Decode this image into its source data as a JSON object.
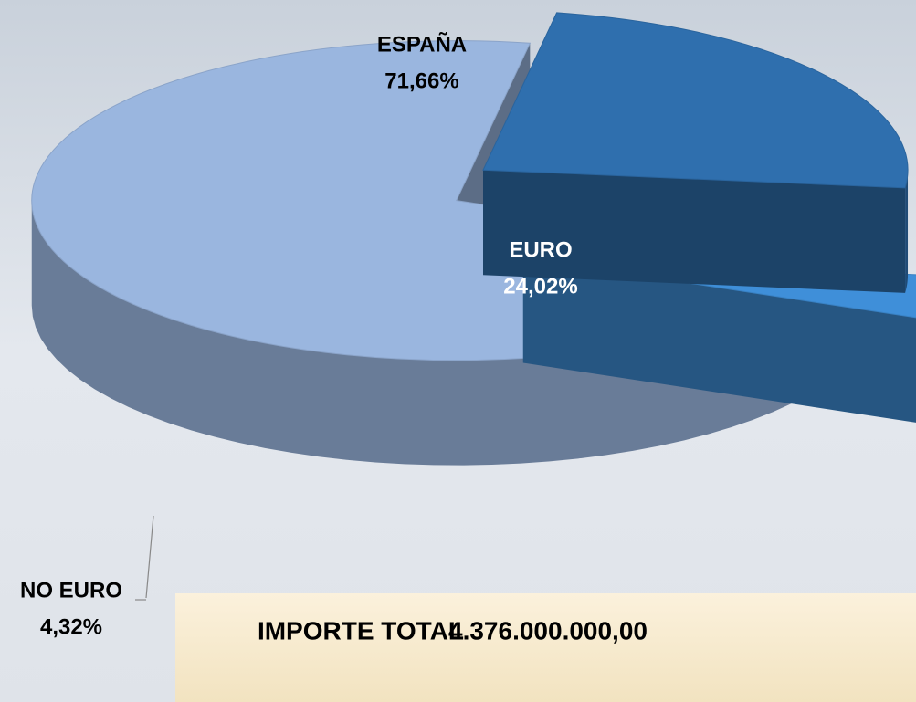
{
  "chart_data": {
    "type": "pie",
    "categories": [
      "ESPAÑA",
      "EURO",
      "NO EURO"
    ],
    "values": [
      71.66,
      24.02,
      4.32
    ],
    "value_labels": [
      "71,66%",
      "24,02%",
      "4,32%"
    ],
    "colors": [
      "#9ab6df",
      "#2f6fae",
      "#3f8fd9"
    ],
    "annotations": [
      "IMPORTE TOTAL",
      "4.376.000.000,00"
    ]
  }
}
